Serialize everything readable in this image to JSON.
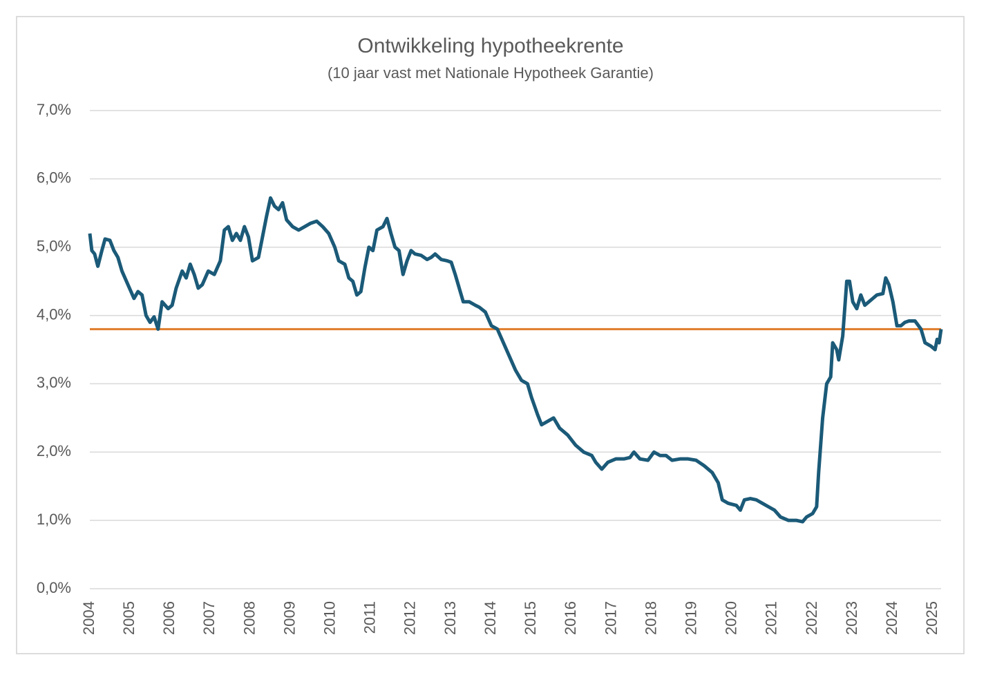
{
  "chart_data": {
    "type": "line",
    "title": "Ontwikkeling hypotheekrente",
    "subtitle": "(10 jaar vast met Nationale Hypotheek Garantie)",
    "x": [
      2004.0,
      2004.05,
      2004.12,
      2004.2,
      2004.3,
      2004.38,
      2004.5,
      2004.6,
      2004.7,
      2004.8,
      2004.95,
      2005.1,
      2005.2,
      2005.3,
      2005.4,
      2005.5,
      2005.6,
      2005.7,
      2005.8,
      2005.95,
      2006.05,
      2006.15,
      2006.3,
      2006.4,
      2006.5,
      2006.6,
      2006.7,
      2006.8,
      2006.95,
      2007.1,
      2007.25,
      2007.35,
      2007.45,
      2007.55,
      2007.65,
      2007.75,
      2007.85,
      2007.95,
      2008.05,
      2008.2,
      2008.3,
      2008.4,
      2008.5,
      2008.6,
      2008.7,
      2008.8,
      2008.9,
      2009.05,
      2009.2,
      2009.35,
      2009.5,
      2009.65,
      2009.8,
      2009.95,
      2010.1,
      2010.2,
      2010.35,
      2010.45,
      2010.55,
      2010.65,
      2010.75,
      2010.85,
      2010.95,
      2011.05,
      2011.15,
      2011.3,
      2011.4,
      2011.5,
      2011.6,
      2011.7,
      2011.8,
      2011.9,
      2012.0,
      2012.1,
      2012.25,
      2012.4,
      2012.5,
      2012.6,
      2012.75,
      2012.9,
      2013.0,
      2013.1,
      2013.2,
      2013.3,
      2013.45,
      2013.6,
      2013.7,
      2013.85,
      2014.0,
      2014.15,
      2014.3,
      2014.45,
      2014.6,
      2014.75,
      2014.9,
      2015.0,
      2015.15,
      2015.25,
      2015.4,
      2015.55,
      2015.7,
      2015.9,
      2016.1,
      2016.3,
      2016.5,
      2016.6,
      2016.75,
      2016.9,
      2017.1,
      2017.3,
      2017.45,
      2017.55,
      2017.7,
      2017.9,
      2018.05,
      2018.2,
      2018.35,
      2018.5,
      2018.7,
      2018.9,
      2019.1,
      2019.3,
      2019.5,
      2019.65,
      2019.75,
      2019.9,
      2020.1,
      2020.2,
      2020.3,
      2020.45,
      2020.6,
      2020.75,
      2020.9,
      2021.05,
      2021.2,
      2021.4,
      2021.6,
      2021.75,
      2021.85,
      2022.0,
      2022.1,
      2022.15,
      2022.25,
      2022.35,
      2022.45,
      2022.5,
      2022.6,
      2022.65,
      2022.75,
      2022.85,
      2022.92,
      2023.0,
      2023.1,
      2023.2,
      2023.3,
      2023.4,
      2023.5,
      2023.6,
      2023.75,
      2023.82,
      2023.9,
      2024.0,
      2024.1,
      2024.2,
      2024.3,
      2024.4,
      2024.55,
      2024.7,
      2024.8,
      2024.95,
      2025.05,
      2025.1,
      2025.15,
      2025.2
    ],
    "series": [
      {
        "color": "#1b5a78",
        "values": [
          5.2,
          4.95,
          4.9,
          4.72,
          4.95,
          5.12,
          5.1,
          4.95,
          4.85,
          4.65,
          4.45,
          4.25,
          4.35,
          4.3,
          4.0,
          3.9,
          3.98,
          3.8,
          4.2,
          4.1,
          4.15,
          4.4,
          4.65,
          4.55,
          4.75,
          4.6,
          4.4,
          4.45,
          4.65,
          4.6,
          4.8,
          5.25,
          5.3,
          5.1,
          5.2,
          5.1,
          5.3,
          5.15,
          4.8,
          4.85,
          5.15,
          5.45,
          5.72,
          5.6,
          5.55,
          5.65,
          5.4,
          5.3,
          5.25,
          5.3,
          5.35,
          5.38,
          5.3,
          5.2,
          5.0,
          4.8,
          4.75,
          4.55,
          4.5,
          4.3,
          4.35,
          4.7,
          5.0,
          4.95,
          5.25,
          5.3,
          5.42,
          5.2,
          5.0,
          4.95,
          4.6,
          4.8,
          4.95,
          4.9,
          4.88,
          4.82,
          4.85,
          4.9,
          4.82,
          4.8,
          4.78,
          4.6,
          4.4,
          4.2,
          4.2,
          4.15,
          4.12,
          4.05,
          3.85,
          3.8,
          3.6,
          3.4,
          3.2,
          3.05,
          3.0,
          2.8,
          2.55,
          2.4,
          2.45,
          2.5,
          2.35,
          2.25,
          2.1,
          2.0,
          1.95,
          1.85,
          1.75,
          1.85,
          1.9,
          1.9,
          1.92,
          2.0,
          1.9,
          1.88,
          2.0,
          1.95,
          1.95,
          1.88,
          1.9,
          1.9,
          1.88,
          1.8,
          1.7,
          1.55,
          1.3,
          1.25,
          1.22,
          1.15,
          1.3,
          1.32,
          1.3,
          1.25,
          1.2,
          1.15,
          1.05,
          1.0,
          1.0,
          0.98,
          1.05,
          1.1,
          1.2,
          1.7,
          2.5,
          3.0,
          3.1,
          3.6,
          3.5,
          3.35,
          3.7,
          4.5,
          4.5,
          4.2,
          4.1,
          4.3,
          4.15,
          4.2,
          4.25,
          4.3,
          4.32,
          4.55,
          4.45,
          4.2,
          3.85,
          3.85,
          3.9,
          3.92,
          3.92,
          3.8,
          3.6,
          3.55,
          3.5,
          3.65,
          3.6,
          3.8
        ]
      }
    ],
    "reference_line": {
      "value": 3.8,
      "color": "#e07b2a"
    },
    "xlim": [
      2004,
      2025.2
    ],
    "xticks": [
      2004,
      2005,
      2006,
      2007,
      2008,
      2009,
      2010,
      2011,
      2012,
      2013,
      2014,
      2015,
      2016,
      2017,
      2018,
      2019,
      2020,
      2021,
      2022,
      2023,
      2024,
      2025
    ],
    "ylim": [
      0,
      7
    ],
    "yticks": [
      {
        "value": 0,
        "label": "0,0%"
      },
      {
        "value": 1,
        "label": "1,0%"
      },
      {
        "value": 2,
        "label": "2,0%"
      },
      {
        "value": 3,
        "label": "3,0%"
      },
      {
        "value": 4,
        "label": "4,0%"
      },
      {
        "value": 5,
        "label": "5,0%"
      },
      {
        "value": 6,
        "label": "6,0%"
      },
      {
        "value": 7,
        "label": "7,0%"
      }
    ],
    "grid": true
  }
}
